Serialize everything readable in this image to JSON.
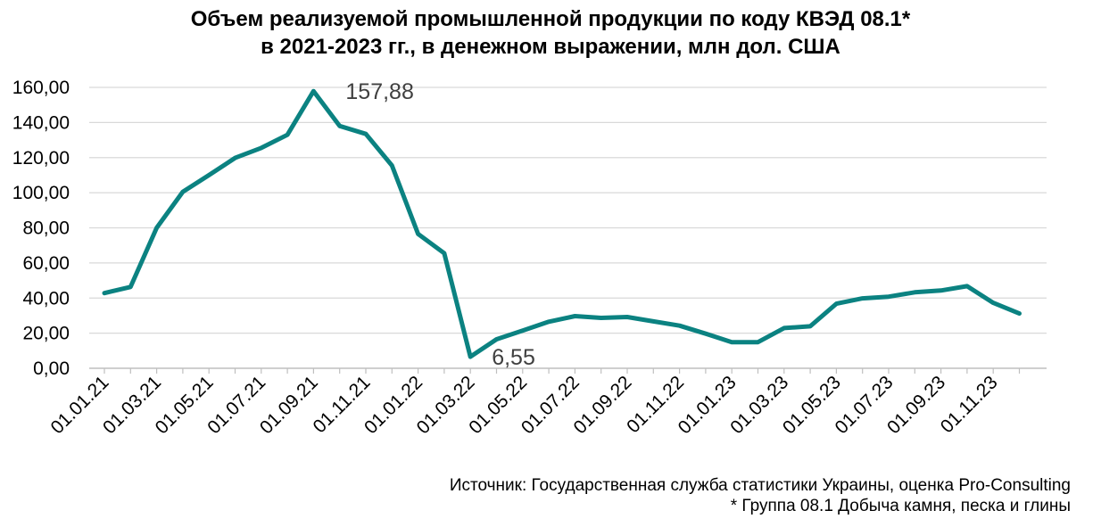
{
  "title_line1": "Объем реализуемой промышленной продукции по коду КВЭД 08.1*",
  "title_line2": "в 2021-2023 гг., в денежном выражении, млн дол. США",
  "source": "Источник: Государственная служба статистики Украины, оценка Pro-Consulting",
  "footnote": "* Группа 08.1 Добыча камня, песка и глины",
  "colors": {
    "line": "#0B8281",
    "grid": "#D9D9D9",
    "axis": "#BFBFBF"
  },
  "chart_data": {
    "type": "line",
    "title": "Объем реализуемой промышленной продукции по коду КВЭД 08.1* в 2021-2023 гг., в денежном выражении, млн дол. США",
    "xlabel": "",
    "ylabel": "",
    "ylim": [
      0,
      160
    ],
    "y_ticks": [
      "0,00",
      "20,00",
      "40,00",
      "60,00",
      "80,00",
      "100,00",
      "120,00",
      "140,00",
      "160,00"
    ],
    "grid": "horizontal",
    "x_tick_labels": [
      "01.01.21",
      "01.03.21",
      "01.05.21",
      "01.07.21",
      "01.09.21",
      "01.11.21",
      "01.01.22",
      "01.03.22",
      "01.05.22",
      "01.07.22",
      "01.09.22",
      "01.11.22",
      "01.01.23",
      "01.03.23",
      "01.05.23",
      "01.07.23",
      "01.09.23",
      "01.11.23"
    ],
    "x": [
      "01.01.21",
      "01.02.21",
      "01.03.21",
      "01.04.21",
      "01.05.21",
      "01.06.21",
      "01.07.21",
      "01.08.21",
      "01.09.21",
      "01.10.21",
      "01.11.21",
      "01.12.21",
      "01.01.22",
      "01.02.22",
      "01.03.22",
      "01.04.22",
      "01.05.22",
      "01.06.22",
      "01.07.22",
      "01.08.22",
      "01.09.22",
      "01.10.22",
      "01.11.22",
      "01.12.22",
      "01.01.23",
      "01.02.23",
      "01.03.23",
      "01.04.23",
      "01.05.23",
      "01.06.23",
      "01.07.23",
      "01.08.23",
      "01.09.23",
      "01.10.23",
      "01.11.23",
      "01.12.23"
    ],
    "values": [
      42.8,
      46.3,
      80.0,
      100.5,
      110.0,
      119.8,
      125.5,
      133.0,
      157.88,
      138.0,
      133.5,
      115.5,
      76.5,
      65.5,
      6.55,
      16.5,
      21.5,
      26.5,
      29.7,
      28.7,
      29.2,
      26.7,
      24.3,
      19.7,
      14.9,
      14.9,
      22.9,
      23.9,
      36.8,
      39.8,
      40.8,
      43.3,
      44.3,
      46.8,
      37.3,
      31.2
    ],
    "annotations": [
      {
        "x": "01.09.21",
        "text": "157,88"
      },
      {
        "x": "01.03.22",
        "text": "6,55"
      }
    ]
  }
}
